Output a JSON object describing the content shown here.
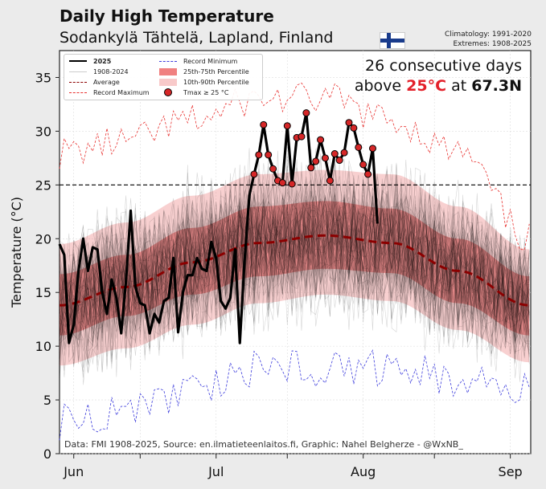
{
  "header": {
    "title": "Daily High Temperature",
    "subtitle": "Sodankylä Tähtelä, Lapland, Finland",
    "climatology": "Climatology: 1991-2020",
    "extremes": "Extremes: 1908-2025"
  },
  "annotation": {
    "line1": "26 consecutive days",
    "pre": "above ",
    "threshold": "25°C",
    "mid": " at ",
    "lat": "67.3N"
  },
  "legend": {
    "l2025": "2025",
    "lhist": "1908-2024",
    "lavg": "Average",
    "lmax": "Record Maximum",
    "lmin": "Record Minimum",
    "l2575": "25th-75th Percentile",
    "l1090": "10th-90th Percentile",
    "ldot": "Tmax ≥ 25 °C"
  },
  "footer": "Data: FMI 1908-2025, Source: en.ilmatieteenlaitos.fi, Graphic: Nahel Belgherze - @WxNB_",
  "colors": {
    "series2025": "#000000",
    "dot": "#d62728",
    "avg": "#8b0000",
    "recmax": "#e8312f",
    "recmin": "#3b3bdc",
    "p2575": "#e34a4a",
    "p1090": "#f2a0a0"
  },
  "chart_data": {
    "type": "line",
    "title": "Daily High Temperature",
    "ylabel": "Temperature (°C)",
    "xlabel": "",
    "x_start": "May 29",
    "xlim_days": [
      0,
      99.3
    ],
    "ylim": [
      0,
      37.5
    ],
    "yticks": [
      0,
      5,
      10,
      15,
      20,
      25,
      30,
      35
    ],
    "xticks": [
      {
        "day": 3,
        "label": "Jun"
      },
      {
        "day": 17,
        "label": ""
      },
      {
        "day": 33,
        "label": "Jul"
      },
      {
        "day": 48,
        "label": ""
      },
      {
        "day": 64,
        "label": "Aug"
      },
      {
        "day": 79,
        "label": ""
      },
      {
        "day": 95,
        "label": "Sep"
      }
    ],
    "threshold": 25,
    "knot_days": [
      0,
      14,
      28,
      42,
      56,
      70,
      84,
      99
    ],
    "average": [
      13.8,
      15.5,
      17.8,
      19.6,
      20.3,
      19.6,
      17,
      13.8
    ],
    "p25": [
      11,
      12.8,
      14.8,
      16.5,
      17.2,
      16.8,
      14,
      11
    ],
    "p75": [
      16.7,
      18.5,
      21,
      23,
      23.5,
      22.8,
      20,
      16.5
    ],
    "p10": [
      8.2,
      9.8,
      12,
      14,
      14.8,
      14.2,
      11.5,
      8.5
    ],
    "p90": [
      19.5,
      21.5,
      24,
      26,
      26.4,
      26,
      23,
      19
    ],
    "record_max": [
      28,
      29,
      31,
      33,
      33,
      31,
      28,
      20
    ],
    "record_min": [
      3,
      4,
      6,
      8,
      8,
      8,
      7,
      6
    ],
    "series_2025": [
      19.5,
      18.5,
      10.3,
      12,
      17,
      20,
      17,
      19.2,
      19,
      15,
      13,
      16.2,
      14.5,
      11.2,
      16,
      22.6,
      15.5,
      14,
      13.8,
      11.2,
      13,
      12.2,
      14.2,
      14.5,
      18.2,
      11.3,
      15,
      16.6,
      16.6,
      18.2,
      17.2,
      17,
      19.7,
      18.2,
      14.2,
      13.5,
      14.5,
      19,
      10.3,
      18,
      24,
      26,
      27.8,
      30.6,
      27.8,
      26.5,
      25.4,
      25.2,
      30.5,
      25.1,
      29.4,
      29.5,
      31.7,
      26.6,
      27.2,
      29.2,
      27.5,
      25.4,
      27.9,
      27.3,
      28,
      30.8,
      30.3,
      28.5,
      26.9,
      26,
      28.4,
      21.4
    ],
    "legend_position": "top-left"
  }
}
